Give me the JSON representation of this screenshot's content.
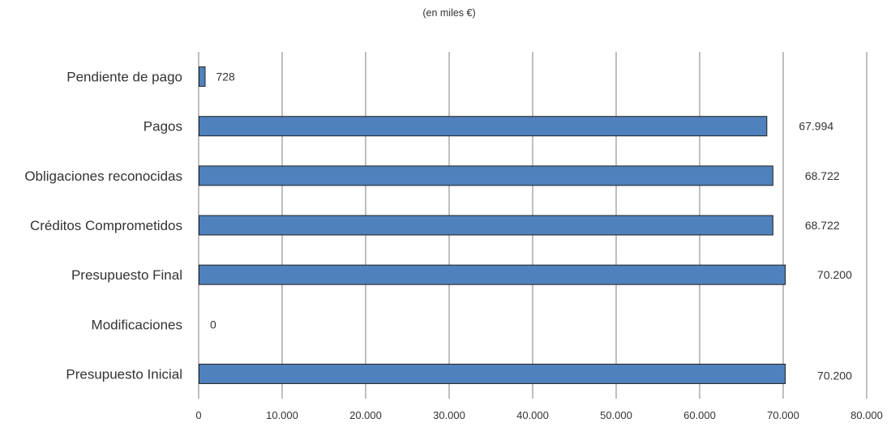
{
  "chart_data": {
    "type": "bar",
    "orientation": "horizontal",
    "subtitle": "(en miles  €)",
    "categories": [
      "Presupuesto Inicial",
      "Modificaciones",
      "Presupuesto Final",
      "Créditos Comprometidos",
      "Obligaciones reconocidas",
      "Pagos",
      "Pendiente de pago"
    ],
    "values": [
      70200,
      0,
      70200,
      68722,
      68722,
      67994,
      728
    ],
    "data_labels": [
      "70.200",
      "0",
      "70.200",
      "68.722",
      "68.722",
      "67.994",
      "728"
    ],
    "xlim": [
      0,
      80000
    ],
    "xticks": [
      0,
      10000,
      20000,
      30000,
      40000,
      50000,
      60000,
      70000,
      80000
    ],
    "xtick_labels": [
      "0",
      "10.000",
      "20.000",
      "30.000",
      "40.000",
      "50.000",
      "60.000",
      "70.000",
      "80.000"
    ],
    "grid": "vertical",
    "legend": "none",
    "colors": {
      "bar": "#4F81BD",
      "bar_edge": "#1F1F1F",
      "grid": "#7F7F7F"
    }
  }
}
